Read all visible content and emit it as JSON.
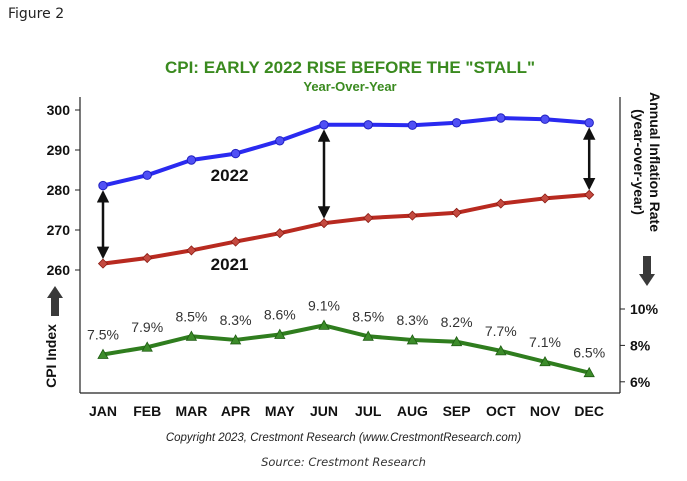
{
  "figure_label": "Figure 2",
  "copyright": "Copyright 2023, Crestmont Research (www.CrestmontResearch.com)",
  "source": "Source: Crestmont Research",
  "colors": {
    "title": "#3a8a1f",
    "cpi_2022": "#2a2af0",
    "cpi_2021": "#b82a20",
    "inflation": "#2f7d1e",
    "arrow": "#111111"
  },
  "chart_data": {
    "type": "line",
    "title": "CPI: EARLY 2022 RISE BEFORE THE \"STALL\"",
    "subtitle": "Year-Over-Year",
    "categories": [
      "JAN",
      "FEB",
      "MAR",
      "APR",
      "MAY",
      "JUN",
      "JUL",
      "AUG",
      "SEP",
      "OCT",
      "NOV",
      "DEC"
    ],
    "left_axis": {
      "label": "CPI Index",
      "ylim": [
        260,
        300
      ],
      "ticks": [
        "300",
        "290",
        "280",
        "270",
        "260"
      ]
    },
    "right_axis": {
      "label_line1": "Annual Inflation Rate",
      "label_line2": "(year-over-year)",
      "ylim": [
        6,
        10
      ],
      "ticks": [
        "10%",
        "8%",
        "6%"
      ]
    },
    "series": [
      {
        "name": "2022",
        "axis": "left",
        "values": [
          281.1,
          283.7,
          287.5,
          289.1,
          292.3,
          296.3,
          296.3,
          296.2,
          296.8,
          298.0,
          297.7,
          296.8
        ]
      },
      {
        "name": "2021",
        "axis": "left",
        "values": [
          261.6,
          263.0,
          264.9,
          267.1,
          269.2,
          271.7,
          273.0,
          273.6,
          274.3,
          276.6,
          277.9,
          278.8
        ]
      },
      {
        "name": "",
        "axis": "right",
        "values": [
          7.5,
          7.9,
          8.5,
          8.3,
          8.6,
          9.1,
          8.5,
          8.3,
          8.2,
          7.7,
          7.1,
          6.5
        ],
        "labels": [
          "7.5%",
          "7.9%",
          "8.5%",
          "8.3%",
          "8.6%",
          "9.1%",
          "8.5%",
          "8.3%",
          "8.2%",
          "7.7%",
          "7.1%",
          "6.5%"
        ]
      }
    ],
    "grid": false
  }
}
